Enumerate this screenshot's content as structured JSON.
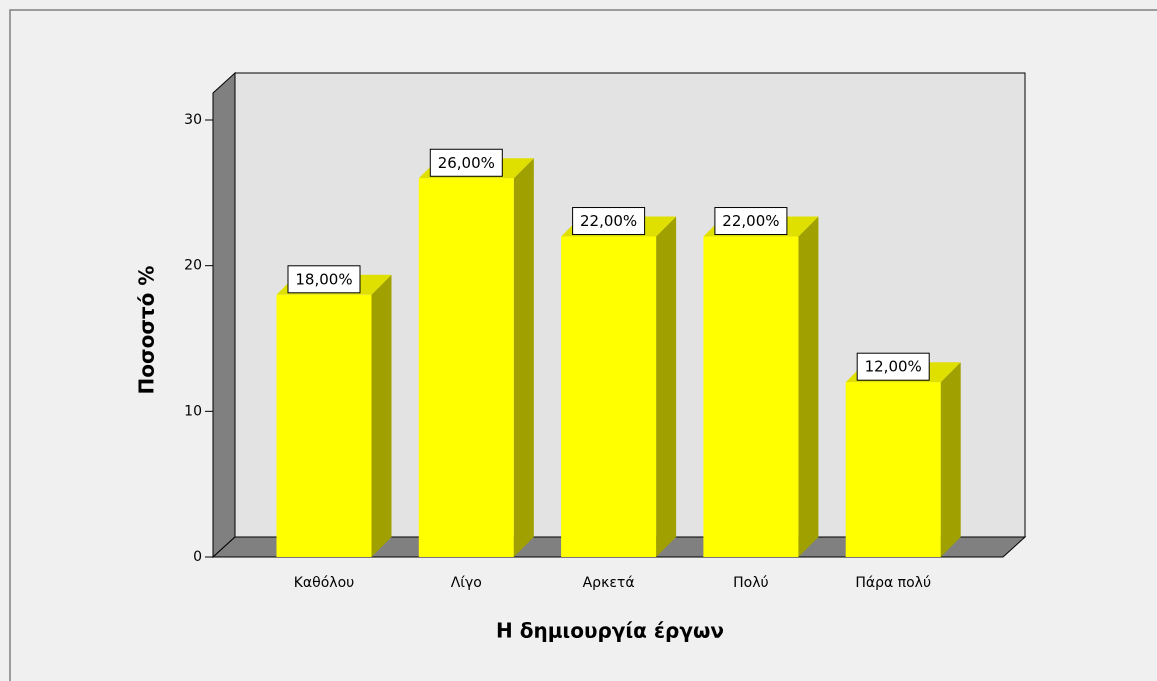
{
  "chart_data": {
    "type": "bar3d",
    "categories": [
      "Καθόλου",
      "Λίγο",
      "Αρκετά",
      "Πολύ",
      "Πάρα πολύ"
    ],
    "values": [
      18,
      26,
      22,
      22,
      12
    ],
    "value_labels": [
      "18,00%",
      "26,00%",
      "22,00%",
      "22,00%",
      "12,00%"
    ],
    "color": "#ffff00",
    "ylim": [
      0,
      30
    ],
    "yticks": [
      0,
      10,
      20,
      30
    ],
    "ylabel": "Ποσοστό %",
    "xlabel": "Η δημιουργία έργων"
  }
}
